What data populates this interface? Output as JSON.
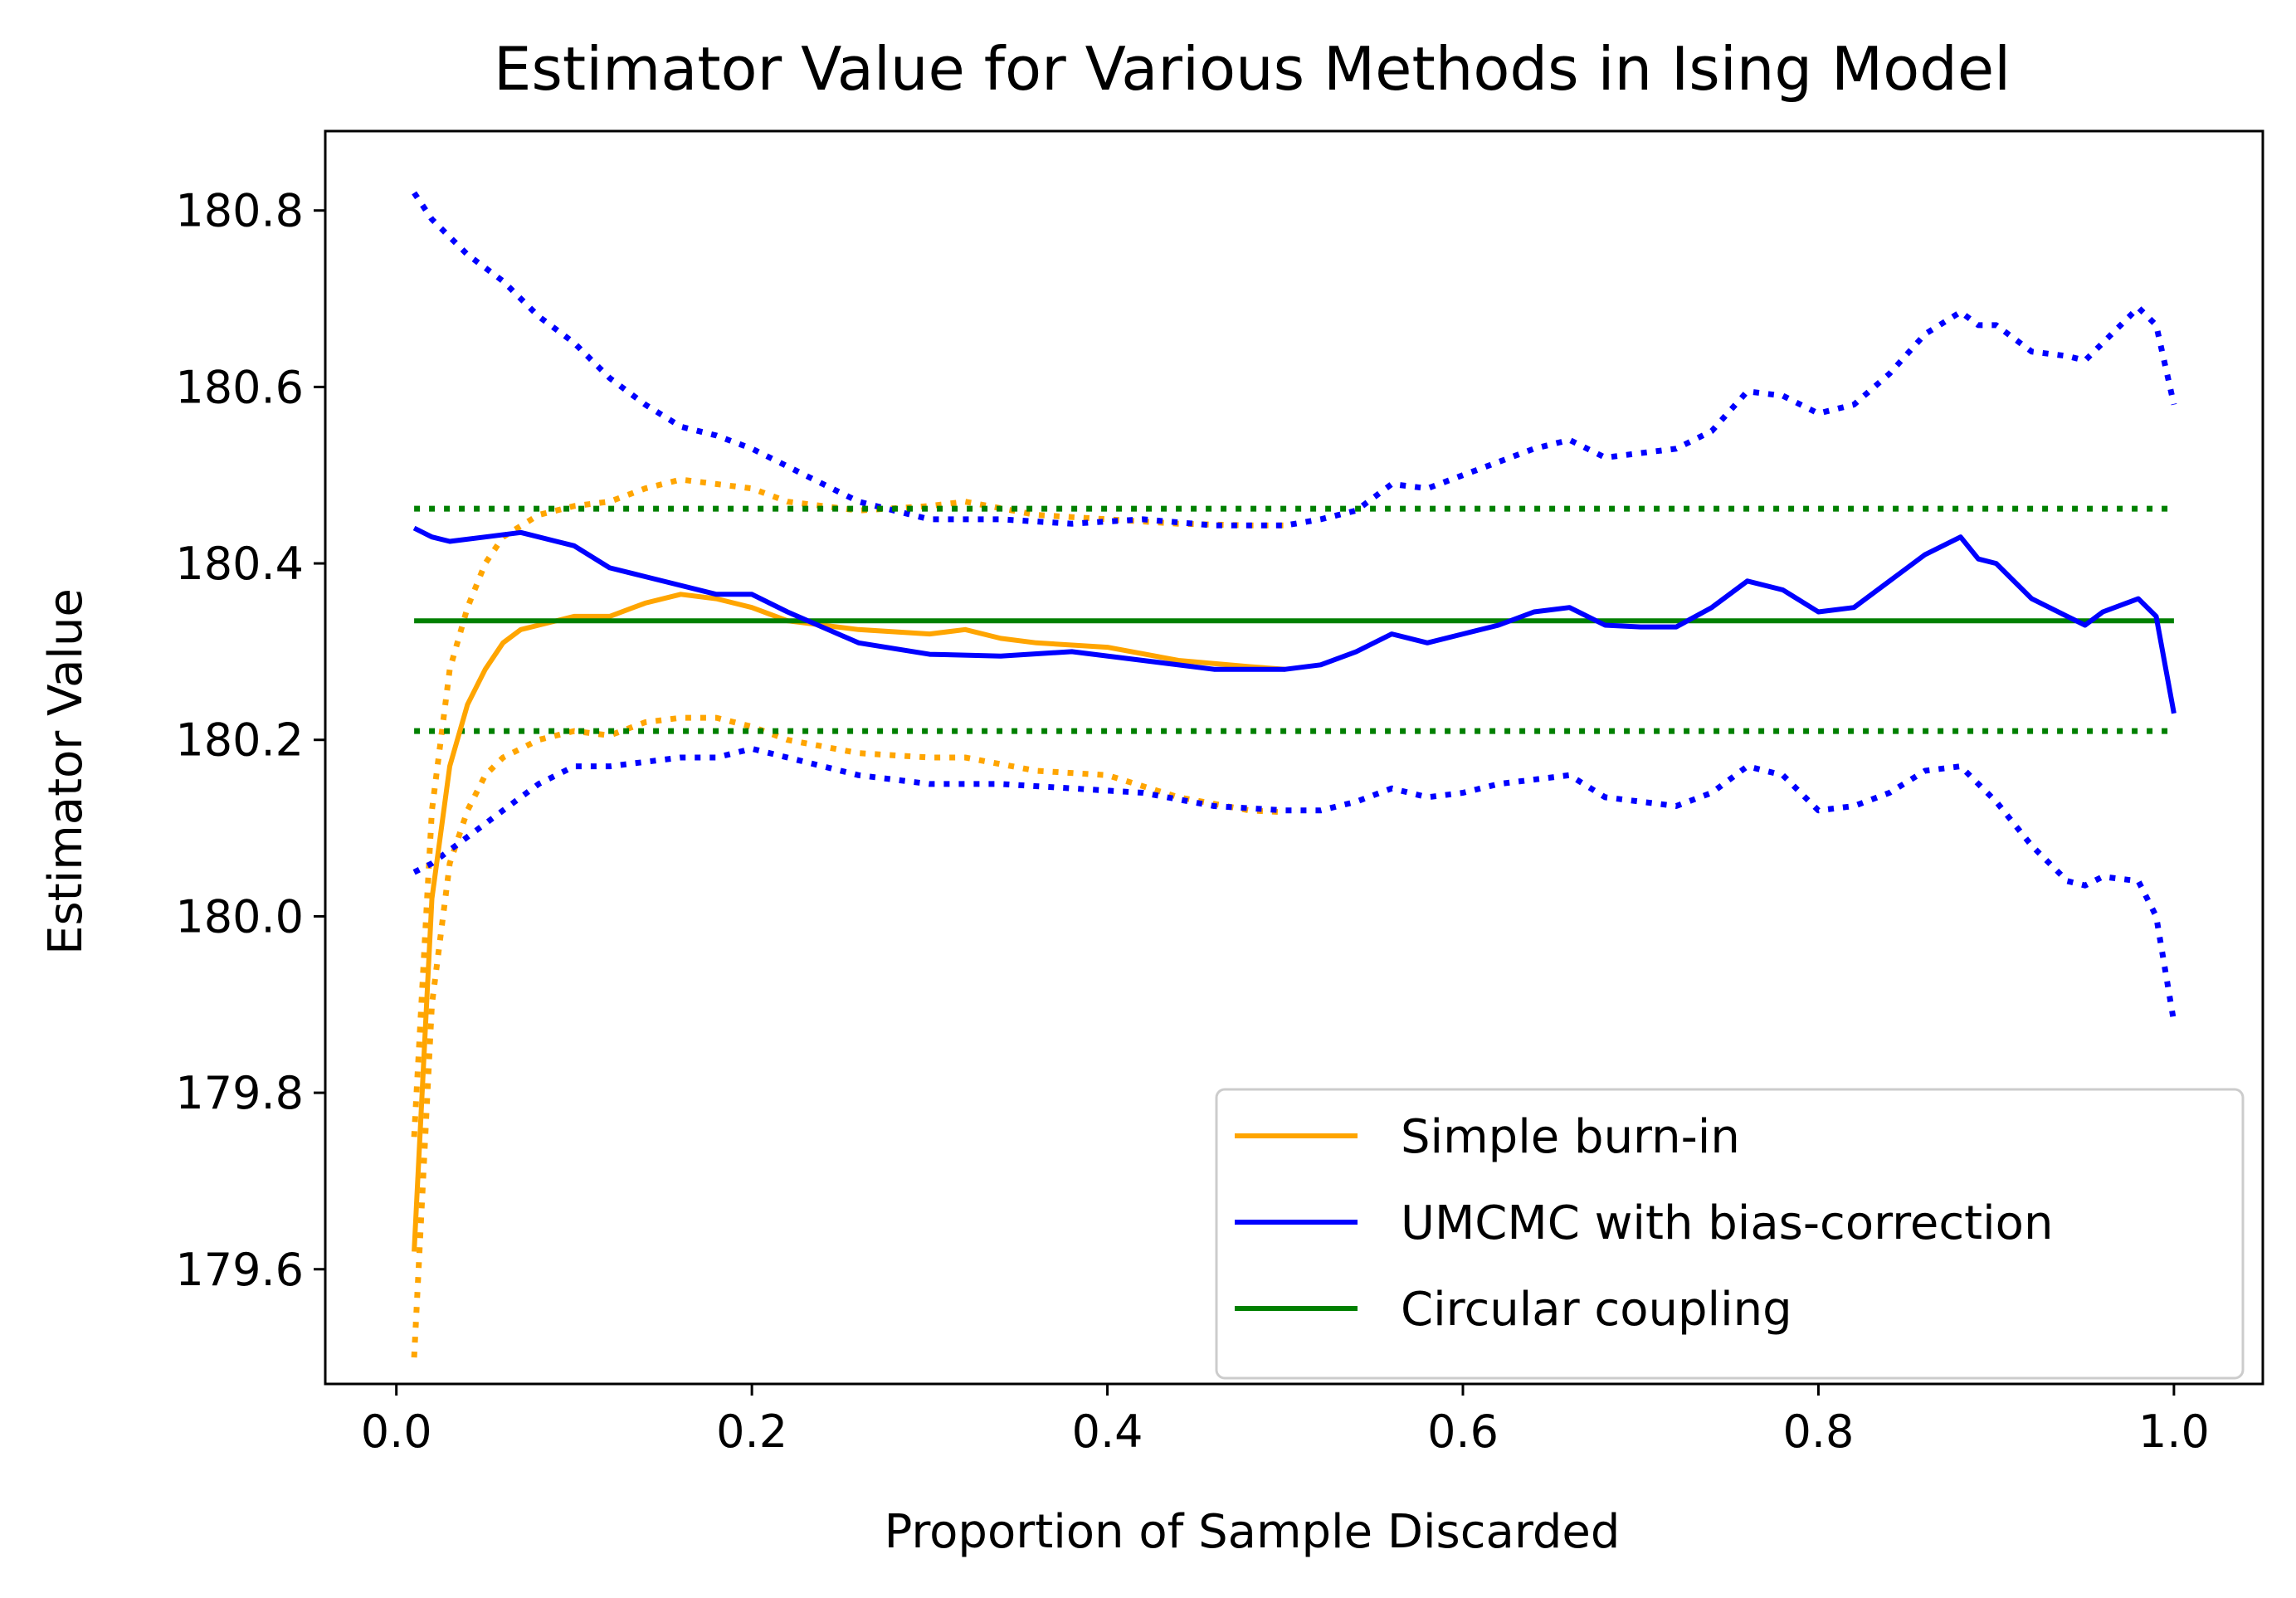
{
  "chart_data": {
    "type": "line",
    "title": "Estimator Value for Various Methods in Ising Model",
    "xlabel": "Proportion of Sample Discarded",
    "ylabel": "Estimator Value",
    "xlim": [
      -0.04,
      1.05
    ],
    "ylim": [
      179.47,
      180.89
    ],
    "xticks": [
      "0.0",
      "0.2",
      "0.4",
      "0.6",
      "0.8",
      "1.0"
    ],
    "yticks": [
      "179.6",
      "179.8",
      "180.0",
      "180.2",
      "180.4",
      "180.6",
      "180.8"
    ],
    "grid": false,
    "legend_position": "lower-right",
    "colors": {
      "orange": "#ffa500",
      "blue": "#0000ff",
      "green": "#008000"
    },
    "series": [
      {
        "name": "Simple burn-in",
        "color": "#ffa500",
        "style": "solid",
        "x": [
          0.01,
          0.02,
          0.03,
          0.04,
          0.05,
          0.06,
          0.07,
          0.08,
          0.1,
          0.12,
          0.14,
          0.16,
          0.18,
          0.2,
          0.22,
          0.24,
          0.26,
          0.3,
          0.32,
          0.34,
          0.36,
          0.4,
          0.44,
          0.48,
          0.5
        ],
        "y": [
          179.62,
          180.02,
          180.17,
          180.24,
          180.28,
          180.31,
          180.325,
          180.33,
          180.34,
          180.34,
          180.355,
          180.365,
          180.36,
          180.35,
          180.335,
          180.33,
          180.325,
          180.32,
          180.325,
          180.315,
          180.31,
          180.305,
          180.29,
          180.283,
          180.28
        ]
      },
      {
        "name": "UMCMC with bias-correction",
        "color": "#0000ff",
        "style": "solid",
        "x": [
          0.01,
          0.02,
          0.03,
          0.05,
          0.07,
          0.09,
          0.1,
          0.12,
          0.14,
          0.16,
          0.18,
          0.2,
          0.22,
          0.26,
          0.3,
          0.34,
          0.38,
          0.42,
          0.46,
          0.5,
          0.52,
          0.54,
          0.56,
          0.58,
          0.6,
          0.62,
          0.64,
          0.66,
          0.68,
          0.7,
          0.72,
          0.74,
          0.76,
          0.78,
          0.8,
          0.82,
          0.84,
          0.86,
          0.88,
          0.89,
          0.9,
          0.92,
          0.94,
          0.95,
          0.96,
          0.98,
          0.99,
          1.0
        ],
        "y": [
          180.44,
          180.43,
          180.425,
          180.43,
          180.435,
          180.425,
          180.42,
          180.395,
          180.385,
          180.375,
          180.365,
          180.365,
          180.345,
          180.31,
          180.297,
          180.295,
          180.3,
          180.29,
          180.28,
          180.28,
          180.285,
          180.3,
          180.32,
          180.31,
          180.32,
          180.33,
          180.345,
          180.35,
          180.33,
          180.328,
          180.328,
          180.35,
          180.38,
          180.37,
          180.345,
          180.35,
          180.38,
          180.41,
          180.43,
          180.405,
          180.4,
          180.36,
          180.34,
          180.33,
          180.345,
          180.36,
          180.34,
          180.23
        ]
      },
      {
        "name": "Circular coupling",
        "color": "#008000",
        "style": "solid",
        "x": [
          0.01,
          1.0
        ],
        "y": [
          180.335,
          180.335
        ]
      },
      {
        "color": "#ffa500",
        "style": "dotted",
        "x": [
          0.01,
          0.02,
          0.03,
          0.04,
          0.05,
          0.06,
          0.08,
          0.1,
          0.12,
          0.14,
          0.16,
          0.18,
          0.2,
          0.22,
          0.26,
          0.3,
          0.32,
          0.36,
          0.4,
          0.44,
          0.48,
          0.5
        ],
        "y": [
          179.75,
          180.12,
          180.28,
          180.35,
          180.4,
          180.43,
          180.455,
          180.465,
          180.47,
          180.485,
          180.495,
          180.49,
          180.485,
          180.47,
          180.46,
          180.465,
          180.47,
          180.455,
          180.45,
          180.445,
          180.443,
          180.443
        ]
      },
      {
        "color": "#ffa500",
        "style": "dotted",
        "x": [
          0.01,
          0.02,
          0.03,
          0.04,
          0.05,
          0.06,
          0.08,
          0.1,
          0.12,
          0.14,
          0.16,
          0.18,
          0.2,
          0.22,
          0.26,
          0.3,
          0.32,
          0.36,
          0.4,
          0.44,
          0.48,
          0.5
        ],
        "y": [
          179.5,
          179.9,
          180.06,
          180.12,
          180.16,
          180.18,
          180.2,
          180.21,
          180.205,
          180.22,
          180.225,
          180.225,
          180.215,
          180.2,
          180.185,
          180.18,
          180.18,
          180.165,
          180.16,
          180.135,
          180.12,
          180.118
        ]
      },
      {
        "color": "#0000ff",
        "style": "dotted",
        "x": [
          0.01,
          0.02,
          0.04,
          0.06,
          0.08,
          0.1,
          0.12,
          0.14,
          0.16,
          0.18,
          0.2,
          0.22,
          0.24,
          0.26,
          0.28,
          0.3,
          0.34,
          0.38,
          0.42,
          0.46,
          0.5,
          0.52,
          0.54,
          0.56,
          0.58,
          0.6,
          0.62,
          0.64,
          0.66,
          0.68,
          0.7,
          0.72,
          0.74,
          0.76,
          0.78,
          0.8,
          0.82,
          0.84,
          0.86,
          0.88,
          0.89,
          0.9,
          0.92,
          0.94,
          0.95,
          0.96,
          0.98,
          0.99,
          1.0
        ],
        "y": [
          180.82,
          180.79,
          180.75,
          180.72,
          180.68,
          180.65,
          180.61,
          180.58,
          180.555,
          180.545,
          180.53,
          180.51,
          180.49,
          180.47,
          180.46,
          180.45,
          180.45,
          180.445,
          180.45,
          180.443,
          180.443,
          180.45,
          180.46,
          180.49,
          180.485,
          180.5,
          180.515,
          180.53,
          180.54,
          180.52,
          180.525,
          180.53,
          180.55,
          180.595,
          180.59,
          180.57,
          180.58,
          180.615,
          180.66,
          180.685,
          180.67,
          180.67,
          180.64,
          180.635,
          180.63,
          180.65,
          180.69,
          180.67,
          180.58
        ]
      },
      {
        "color": "#0000ff",
        "style": "dotted",
        "x": [
          0.01,
          0.02,
          0.04,
          0.06,
          0.08,
          0.1,
          0.12,
          0.14,
          0.16,
          0.18,
          0.2,
          0.22,
          0.26,
          0.3,
          0.34,
          0.38,
          0.42,
          0.46,
          0.5,
          0.52,
          0.54,
          0.56,
          0.58,
          0.6,
          0.62,
          0.64,
          0.66,
          0.68,
          0.7,
          0.72,
          0.74,
          0.76,
          0.78,
          0.8,
          0.82,
          0.84,
          0.86,
          0.88,
          0.89,
          0.9,
          0.92,
          0.94,
          0.95,
          0.96,
          0.98,
          0.99,
          1.0
        ],
        "y": [
          180.05,
          180.06,
          180.09,
          180.12,
          180.15,
          180.17,
          180.17,
          180.175,
          180.18,
          180.18,
          180.19,
          180.18,
          180.16,
          180.15,
          180.15,
          180.145,
          180.14,
          180.125,
          180.12,
          180.12,
          180.13,
          180.145,
          180.135,
          180.14,
          180.15,
          180.155,
          180.16,
          180.135,
          180.13,
          180.125,
          180.14,
          180.17,
          180.16,
          180.12,
          180.125,
          180.14,
          180.165,
          180.17,
          180.15,
          180.13,
          180.08,
          180.04,
          180.035,
          180.045,
          180.04,
          180.0,
          179.88
        ]
      },
      {
        "color": "#008000",
        "style": "dotted",
        "x": [
          0.01,
          1.0
        ],
        "y": [
          180.462,
          180.462
        ]
      },
      {
        "color": "#008000",
        "style": "dotted",
        "x": [
          0.01,
          1.0
        ],
        "y": [
          180.21,
          180.21
        ]
      }
    ]
  }
}
